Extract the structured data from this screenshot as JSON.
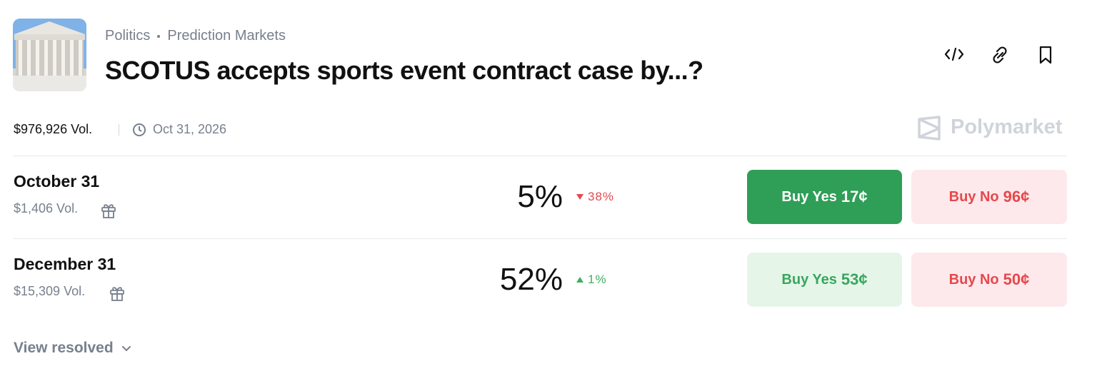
{
  "header": {
    "category": "Politics",
    "subcategory": "Prediction Markets",
    "title": "SCOTUS accepts sports event contract case by...?"
  },
  "meta": {
    "volume": "$976,926 Vol.",
    "end_date": "Oct 31, 2026",
    "brand": "Polymarket"
  },
  "markets": [
    {
      "name": "October 31",
      "volume": "$1,406 Vol.",
      "chance": "5%",
      "change": "38%",
      "direction": "down",
      "yes_label": "Buy Yes",
      "yes_price": "17¢",
      "no_label": "Buy No",
      "no_price": "96¢",
      "yes_active": true
    },
    {
      "name": "December 31",
      "volume": "$15,309 Vol.",
      "chance": "52%",
      "change": "1%",
      "direction": "up",
      "yes_label": "Buy Yes",
      "yes_price": "53¢",
      "no_label": "Buy No",
      "no_price": "50¢",
      "yes_active": false
    }
  ],
  "footer": {
    "view_resolved": "View resolved"
  }
}
